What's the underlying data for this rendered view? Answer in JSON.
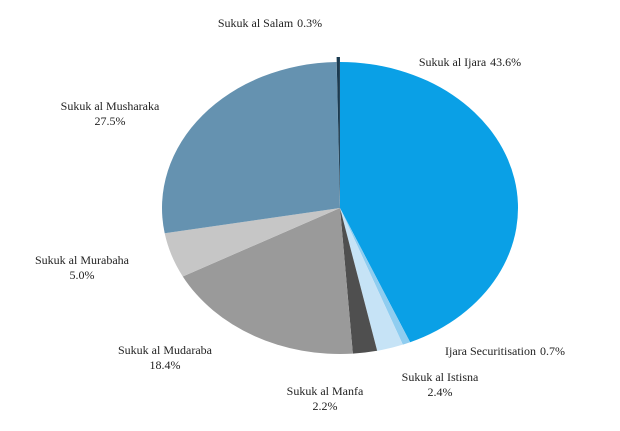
{
  "chart_data": {
    "type": "pie",
    "categories": [
      "Sukuk al Ijara",
      "Ijara Securitisation",
      "Sukuk al Istisna",
      "Sukuk al Manfa",
      "Sukuk al Mudaraba",
      "Sukuk al Murabaha",
      "Sukuk al Musharaka",
      "Sukuk al Salam"
    ],
    "values": [
      43.6,
      0.7,
      2.4,
      2.2,
      18.4,
      5.0,
      27.5,
      0.3
    ],
    "value_labels": [
      "43.6%",
      "0.7%",
      "2.4%",
      "2.2%",
      "18.4%",
      "5.0%",
      "27.5%",
      "0.3%"
    ],
    "colors": [
      "#0aa0e6",
      "#8fcdf0",
      "#c6e3f6",
      "#4f4f4f",
      "#9a9a9a",
      "#c6c6c6",
      "#6592b0",
      "#1a3a50"
    ]
  }
}
